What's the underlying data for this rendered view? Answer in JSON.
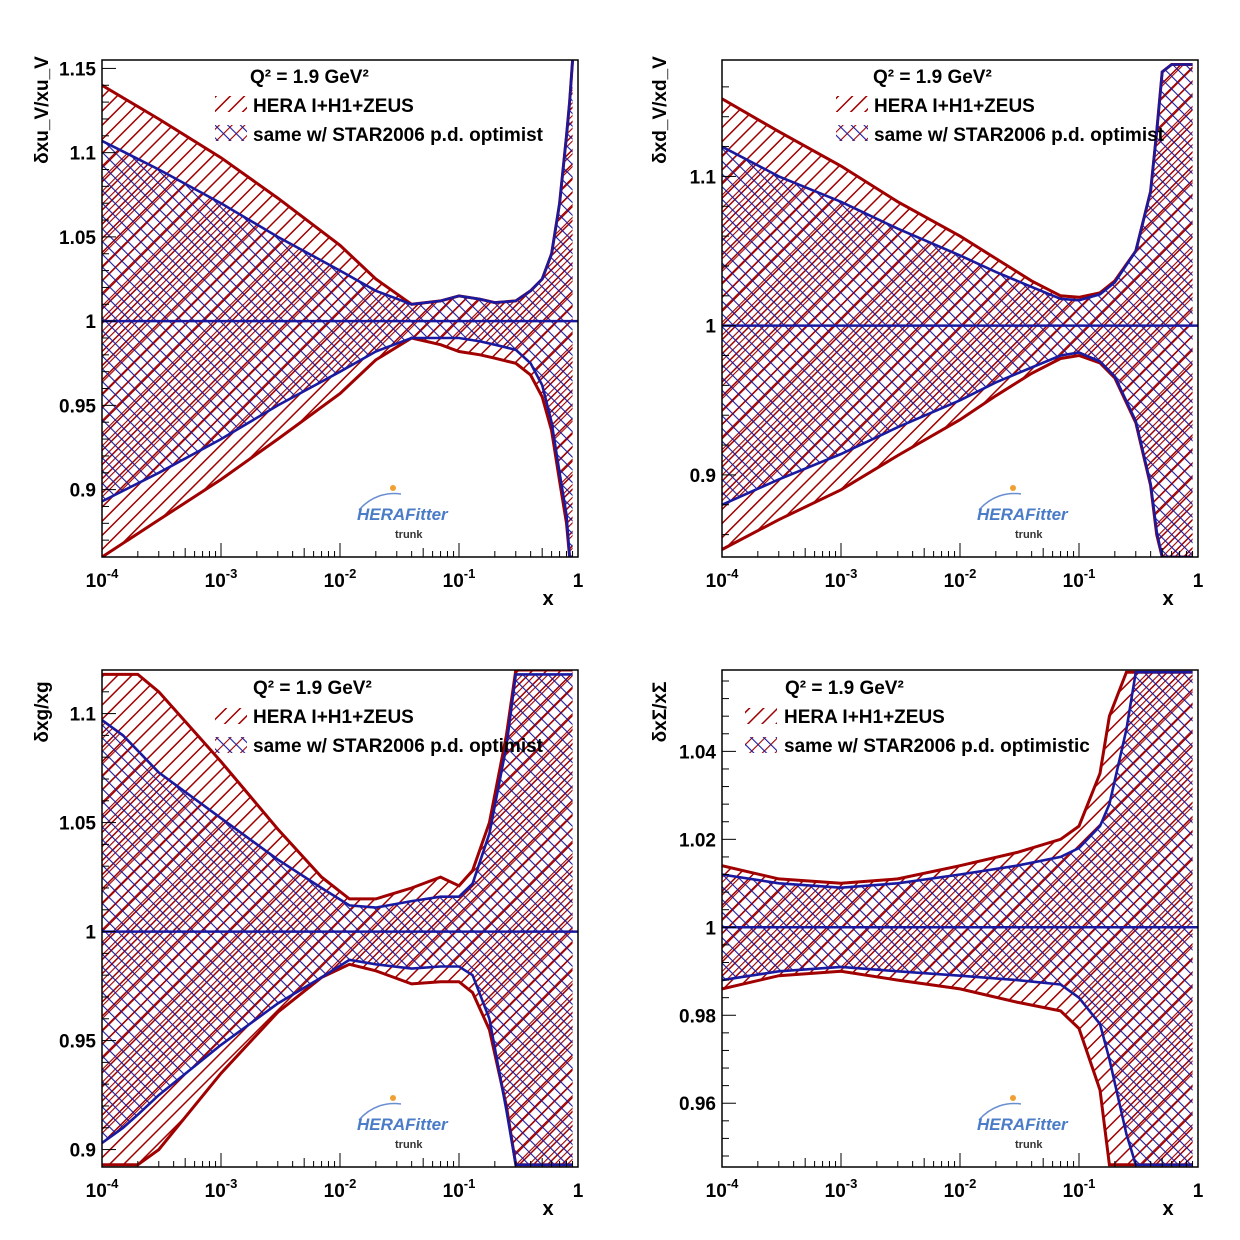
{
  "colors": {
    "hera": "#a00000",
    "star": "#1a1aa0",
    "axis": "#000000"
  },
  "logo": {
    "text": "HERAFitter",
    "sub": "trunk"
  },
  "chart_data": [
    {
      "type": "area",
      "ylabel": "δxu_V/xu_V",
      "xlabel": "x",
      "xscale": "log",
      "xlim": [
        0.0001,
        1
      ],
      "ylim": [
        0.86,
        1.155
      ],
      "x_ticks": [
        {
          "v": 0.0001,
          "b": "10",
          "e": "-4"
        },
        {
          "v": 0.001,
          "b": "10",
          "e": "-3"
        },
        {
          "v": 0.01,
          "b": "10",
          "e": "-2"
        },
        {
          "v": 0.1,
          "b": "10",
          "e": "-1"
        },
        {
          "v": 1,
          "b": "1",
          "e": ""
        }
      ],
      "y_ticks": [
        {
          "v": 0.9,
          "t": "0.9"
        },
        {
          "v": 0.95,
          "t": "0.95"
        },
        {
          "v": 1.0,
          "t": "1"
        },
        {
          "v": 1.05,
          "t": "1.05"
        },
        {
          "v": 1.1,
          "t": "1.1"
        },
        {
          "v": 1.15,
          "t": "1.15"
        }
      ],
      "annotation": "Q² = 1.9 GeV²",
      "legend": [
        "HERA I+H1+ZEUS",
        "same w/ STAR2006 p.d. optimist"
      ],
      "x": [
        0.0001,
        0.0003,
        0.001,
        0.003,
        0.01,
        0.02,
        0.04,
        0.07,
        0.1,
        0.15,
        0.2,
        0.3,
        0.4,
        0.5,
        0.6,
        0.7,
        0.8,
        0.85,
        0.9
      ],
      "series": [
        {
          "name": "HERA I+H1+ZEUS",
          "upper": [
            1.14,
            1.12,
            1.097,
            1.073,
            1.045,
            1.025,
            1.01,
            1.012,
            1.015,
            1.013,
            1.011,
            1.012,
            1.018,
            1.025,
            1.04,
            1.07,
            1.11,
            1.13,
            1.155
          ],
          "lower": [
            0.86,
            0.882,
            0.906,
            0.93,
            0.957,
            0.977,
            0.99,
            0.986,
            0.982,
            0.98,
            0.978,
            0.975,
            0.968,
            0.955,
            0.935,
            0.905,
            0.88,
            0.86,
            0.86
          ]
        },
        {
          "name": "same w/ STAR2006 p.d. optimist",
          "upper": [
            1.107,
            1.09,
            1.07,
            1.05,
            1.03,
            1.018,
            1.01,
            1.012,
            1.015,
            1.013,
            1.011,
            1.012,
            1.018,
            1.025,
            1.04,
            1.07,
            1.11,
            1.13,
            1.155
          ],
          "lower": [
            0.893,
            0.91,
            0.93,
            0.95,
            0.97,
            0.982,
            0.99,
            0.99,
            0.99,
            0.988,
            0.986,
            0.983,
            0.975,
            0.962,
            0.94,
            0.91,
            0.885,
            0.86,
            0.86
          ]
        }
      ]
    },
    {
      "type": "area",
      "ylabel": "δxd_V/xd_V",
      "xlabel": "x",
      "xscale": "log",
      "xlim": [
        0.0001,
        1
      ],
      "ylim": [
        0.845,
        1.178
      ],
      "x_ticks": [
        {
          "v": 0.0001,
          "b": "10",
          "e": "-4"
        },
        {
          "v": 0.001,
          "b": "10",
          "e": "-3"
        },
        {
          "v": 0.01,
          "b": "10",
          "e": "-2"
        },
        {
          "v": 0.1,
          "b": "10",
          "e": "-1"
        },
        {
          "v": 1,
          "b": "1",
          "e": ""
        }
      ],
      "y_ticks": [
        {
          "v": 0.9,
          "t": "0.9"
        },
        {
          "v": 1.0,
          "t": "1"
        },
        {
          "v": 1.1,
          "t": "1.1"
        }
      ],
      "annotation": "Q² = 1.9 GeV²",
      "legend": [
        "HERA I+H1+ZEUS",
        "same w/ STAR2006 p.d. optimist"
      ],
      "x": [
        0.0001,
        0.0003,
        0.001,
        0.003,
        0.01,
        0.02,
        0.04,
        0.07,
        0.1,
        0.15,
        0.2,
        0.3,
        0.4,
        0.45,
        0.5,
        0.6,
        0.7,
        0.8,
        0.9
      ],
      "series": [
        {
          "name": "HERA I+H1+ZEUS",
          "upper": [
            1.152,
            1.13,
            1.107,
            1.083,
            1.06,
            1.045,
            1.03,
            1.02,
            1.019,
            1.022,
            1.03,
            1.05,
            1.09,
            1.13,
            1.17,
            1.175,
            1.175,
            1.175,
            1.175
          ],
          "lower": [
            0.85,
            0.87,
            0.89,
            0.913,
            0.937,
            0.953,
            0.968,
            0.978,
            0.98,
            0.975,
            0.965,
            0.935,
            0.893,
            0.86,
            0.845,
            0.845,
            0.845,
            0.845,
            0.845
          ]
        },
        {
          "name": "same w/ STAR2006 p.d. optimist",
          "upper": [
            1.12,
            1.1,
            1.083,
            1.065,
            1.047,
            1.036,
            1.026,
            1.018,
            1.017,
            1.021,
            1.029,
            1.05,
            1.09,
            1.13,
            1.17,
            1.175,
            1.175,
            1.175,
            1.175
          ],
          "lower": [
            0.88,
            0.897,
            0.914,
            0.932,
            0.95,
            0.962,
            0.972,
            0.98,
            0.982,
            0.976,
            0.966,
            0.936,
            0.894,
            0.862,
            0.845,
            0.845,
            0.845,
            0.845,
            0.845
          ]
        }
      ]
    },
    {
      "type": "area",
      "ylabel": "δxg/xg",
      "xlabel": "x",
      "xscale": "log",
      "xlim": [
        0.0001,
        1
      ],
      "ylim": [
        0.892,
        1.12
      ],
      "x_ticks": [
        {
          "v": 0.0001,
          "b": "10",
          "e": "-4"
        },
        {
          "v": 0.001,
          "b": "10",
          "e": "-3"
        },
        {
          "v": 0.01,
          "b": "10",
          "e": "-2"
        },
        {
          "v": 0.1,
          "b": "10",
          "e": "-1"
        },
        {
          "v": 1,
          "b": "1",
          "e": ""
        }
      ],
      "y_ticks": [
        {
          "v": 0.9,
          "t": "0.9"
        },
        {
          "v": 0.95,
          "t": "0.95"
        },
        {
          "v": 1.0,
          "t": "1"
        },
        {
          "v": 1.05,
          "t": "1.05"
        },
        {
          "v": 1.1,
          "t": "1.1"
        }
      ],
      "annotation": "Q² = 1.9 GeV²",
      "legend": [
        "HERA I+H1+ZEUS",
        "same w/ STAR2006 p.d. optimist"
      ],
      "x": [
        0.0001,
        0.00015,
        0.0002,
        0.0003,
        0.001,
        0.003,
        0.007,
        0.012,
        0.02,
        0.04,
        0.07,
        0.1,
        0.13,
        0.18,
        0.25,
        0.3,
        0.35,
        0.4,
        0.6,
        0.9
      ],
      "series": [
        {
          "name": "HERA I+H1+ZEUS",
          "upper": [
            1.118,
            1.118,
            1.118,
            1.11,
            1.078,
            1.047,
            1.025,
            1.015,
            1.015,
            1.02,
            1.025,
            1.021,
            1.028,
            1.05,
            1.09,
            1.12,
            1.12,
            1.12,
            1.12,
            1.12
          ],
          "lower": [
            0.893,
            0.893,
            0.893,
            0.9,
            0.935,
            0.963,
            0.979,
            0.985,
            0.982,
            0.976,
            0.977,
            0.977,
            0.972,
            0.955,
            0.92,
            0.893,
            0.893,
            0.893,
            0.893,
            0.893
          ]
        },
        {
          "name": "same w/ STAR2006 p.d. optimist",
          "upper": [
            1.097,
            1.09,
            1.083,
            1.073,
            1.052,
            1.033,
            1.02,
            1.012,
            1.011,
            1.014,
            1.016,
            1.016,
            1.022,
            1.045,
            1.085,
            1.118,
            1.118,
            1.118,
            1.118,
            1.118
          ],
          "lower": [
            0.903,
            0.91,
            0.916,
            0.925,
            0.948,
            0.967,
            0.979,
            0.987,
            0.985,
            0.983,
            0.984,
            0.984,
            0.98,
            0.96,
            0.918,
            0.893,
            0.893,
            0.893,
            0.893,
            0.893
          ]
        }
      ]
    },
    {
      "type": "area",
      "ylabel": "δxΣ/xΣ",
      "xlabel": "x",
      "xscale": "log",
      "xlim": [
        0.0001,
        1
      ],
      "ylim": [
        0.9455,
        1.0585
      ],
      "x_ticks": [
        {
          "v": 0.0001,
          "b": "10",
          "e": "-4"
        },
        {
          "v": 0.001,
          "b": "10",
          "e": "-3"
        },
        {
          "v": 0.01,
          "b": "10",
          "e": "-2"
        },
        {
          "v": 0.1,
          "b": "10",
          "e": "-1"
        },
        {
          "v": 1,
          "b": "1",
          "e": ""
        }
      ],
      "y_ticks": [
        {
          "v": 0.96,
          "t": "0.96"
        },
        {
          "v": 0.98,
          "t": "0.98"
        },
        {
          "v": 1.0,
          "t": "1"
        },
        {
          "v": 1.02,
          "t": "1.02"
        },
        {
          "v": 1.04,
          "t": "1.04"
        }
      ],
      "annotation": "Q² = 1.9 GeV²",
      "legend": [
        "HERA I+H1+ZEUS",
        "same w/ STAR2006 p.d. optimistic"
      ],
      "x": [
        0.0001,
        0.0003,
        0.001,
        0.003,
        0.01,
        0.03,
        0.07,
        0.1,
        0.15,
        0.18,
        0.25,
        0.3,
        0.4,
        0.6,
        0.9
      ],
      "series": [
        {
          "name": "HERA I+H1+ZEUS",
          "upper": [
            1.014,
            1.011,
            1.01,
            1.011,
            1.014,
            1.017,
            1.02,
            1.023,
            1.035,
            1.048,
            1.058,
            1.058,
            1.058,
            1.058,
            1.058
          ],
          "lower": [
            0.986,
            0.989,
            0.99,
            0.988,
            0.986,
            0.983,
            0.981,
            0.977,
            0.963,
            0.946,
            0.946,
            0.946,
            0.946,
            0.946,
            0.946
          ]
        },
        {
          "name": "same w/ STAR2006 p.d. optimistic",
          "upper": [
            1.012,
            1.01,
            1.009,
            1.01,
            1.012,
            1.014,
            1.016,
            1.018,
            1.023,
            1.028,
            1.045,
            1.058,
            1.058,
            1.058,
            1.058
          ],
          "lower": [
            0.988,
            0.99,
            0.991,
            0.99,
            0.989,
            0.988,
            0.987,
            0.984,
            0.978,
            0.97,
            0.953,
            0.946,
            0.946,
            0.946,
            0.946
          ]
        }
      ]
    }
  ]
}
